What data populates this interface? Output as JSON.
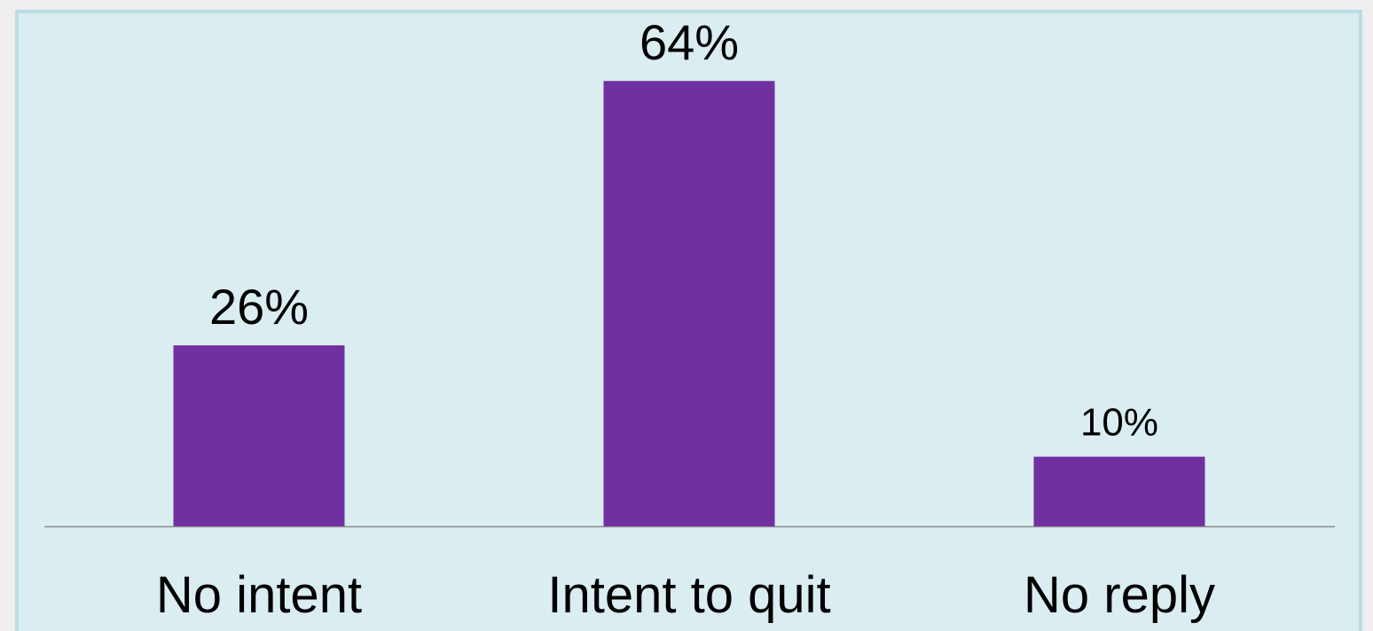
{
  "chart_data": {
    "type": "bar",
    "categories": [
      "No intent",
      "Intent to quit",
      "No reply"
    ],
    "values": [
      26,
      64,
      10
    ],
    "value_labels": [
      "26%",
      "64%",
      "10%"
    ],
    "color": "#7030a0"
  }
}
